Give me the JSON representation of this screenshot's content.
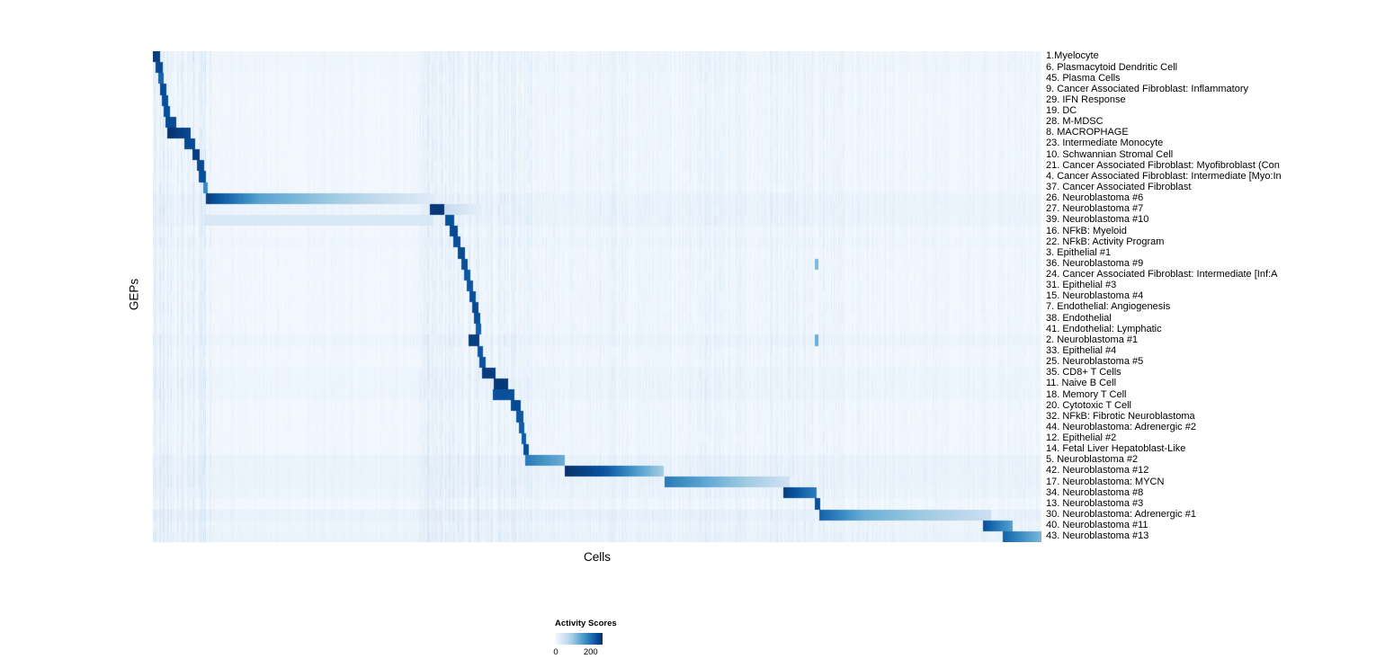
{
  "chart_data": {
    "type": "heatmap",
    "title": "",
    "xlabel": "Cells",
    "ylabel": "GEPs",
    "legend": {
      "title": "Activity Scores",
      "min": 0,
      "max": 200,
      "min_label": "0",
      "max_label": "200"
    },
    "colormap": [
      "#f7fbff",
      "#deebf7",
      "#c6dbef",
      "#9ecae1",
      "#6baed6",
      "#4292c6",
      "#2171b5",
      "#08519c",
      "#08306b"
    ],
    "value_scale": {
      "min": 0,
      "max": 200
    },
    "texture_bands": [
      {
        "x0": 0.0,
        "x1": 0.065,
        "amp": 0.09
      },
      {
        "x0": 0.3,
        "x1": 0.43,
        "amp": 0.07
      },
      {
        "x0": 0.43,
        "x1": 0.6,
        "amp": 0.04
      },
      {
        "x0": 0.6,
        "x1": 0.78,
        "amp": 0.05
      },
      {
        "x0": 0.78,
        "x1": 1.0,
        "amp": 0.03
      }
    ],
    "rows": [
      {
        "label": "1.Myelocyte",
        "base": 0.03,
        "segments": [
          {
            "x0": 0.0,
            "x1": 0.008,
            "v0": 0.95,
            "v1": 0.95
          }
        ]
      },
      {
        "label": "6. Plasmacytoid Dendritic Cell",
        "base": 0.03,
        "segments": [
          {
            "x0": 0.003,
            "x1": 0.011,
            "v0": 0.9,
            "v1": 0.9
          }
        ]
      },
      {
        "label": "45. Plasma Cells",
        "base": 0.02,
        "segments": [
          {
            "x0": 0.006,
            "x1": 0.012,
            "v0": 0.8,
            "v1": 0.8
          }
        ]
      },
      {
        "label": "9. Cancer Associated Fibroblast: Inflammatory",
        "base": 0.02,
        "segments": [
          {
            "x0": 0.008,
            "x1": 0.015,
            "v0": 0.9,
            "v1": 0.9
          }
        ]
      },
      {
        "label": "29. IFN Response",
        "base": 0.02,
        "segments": [
          {
            "x0": 0.01,
            "x1": 0.017,
            "v0": 0.88,
            "v1": 0.88
          }
        ]
      },
      {
        "label": "19. DC",
        "base": 0.02,
        "segments": [
          {
            "x0": 0.012,
            "x1": 0.019,
            "v0": 0.88,
            "v1": 0.88
          }
        ]
      },
      {
        "label": "28. M-MDSC",
        "base": 0.02,
        "segments": [
          {
            "x0": 0.014,
            "x1": 0.026,
            "v0": 0.9,
            "v1": 0.9
          }
        ]
      },
      {
        "label": "8. MACROPHAGE",
        "base": 0.02,
        "segments": [
          {
            "x0": 0.016,
            "x1": 0.0415,
            "v0": 1.0,
            "v1": 0.9
          }
        ]
      },
      {
        "label": "23. Intermediate Monocyte",
        "base": 0.02,
        "segments": [
          {
            "x0": 0.035,
            "x1": 0.0475,
            "v0": 0.9,
            "v1": 0.9
          }
        ]
      },
      {
        "label": "10. Schwannian Stromal Cell",
        "base": 0.02,
        "segments": [
          {
            "x0": 0.0445,
            "x1": 0.0526,
            "v0": 0.95,
            "v1": 0.95
          }
        ]
      },
      {
        "label": "21. Cancer Associated Fibroblast: Myofibroblast (Con",
        "base": 0.02,
        "segments": [
          {
            "x0": 0.0486,
            "x1": 0.0567,
            "v0": 0.9,
            "v1": 0.9
          }
        ]
      },
      {
        "label": "4. Cancer Associated Fibroblast: Intermediate [Myo:In",
        "base": 0.02,
        "segments": [
          {
            "x0": 0.0516,
            "x1": 0.0597,
            "v0": 0.88,
            "v1": 0.88
          }
        ]
      },
      {
        "label": "37. Cancer Associated Fibroblast",
        "base": 0.02,
        "segments": [
          {
            "x0": 0.0557,
            "x1": 0.0617,
            "v0": 0.65,
            "v1": 0.65
          }
        ]
      },
      {
        "label": "26. Neuroblastoma #6",
        "base": 0.045,
        "segments": [
          {
            "x0": 0.0597,
            "x1": 0.12,
            "v0": 0.95,
            "v1": 0.55
          },
          {
            "x0": 0.12,
            "x1": 0.3148,
            "v0": 0.55,
            "v1": 0.12
          }
        ]
      },
      {
        "label": "27. Neuroblastoma #7",
        "base": 0.045,
        "segments": [
          {
            "x0": 0.3117,
            "x1": 0.3279,
            "v0": 0.97,
            "v1": 0.97
          },
          {
            "x0": 0.3279,
            "x1": 0.37,
            "v0": 0.25,
            "v1": 0.08
          }
        ]
      },
      {
        "label": "39. Neuroblastoma #10",
        "base": 0.045,
        "segments": [
          {
            "x0": 0.0597,
            "x1": 0.3148,
            "v0": 0.15,
            "v1": 0.15
          },
          {
            "x0": 0.3289,
            "x1": 0.339,
            "v0": 0.88,
            "v1": 0.88
          }
        ]
      },
      {
        "label": "16. NFkB: Myeloid",
        "base": 0.02,
        "segments": [
          {
            "x0": 0.334,
            "x1": 0.343,
            "v0": 0.9,
            "v1": 0.9
          }
        ]
      },
      {
        "label": "22. NFkB: Activity Program",
        "base": 0.03,
        "segments": [
          {
            "x0": 0.338,
            "x1": 0.346,
            "v0": 0.88,
            "v1": 0.88
          }
        ]
      },
      {
        "label": "3. Epithelial #1",
        "base": 0.02,
        "segments": [
          {
            "x0": 0.343,
            "x1": 0.351,
            "v0": 0.9,
            "v1": 0.9
          }
        ]
      },
      {
        "label": "36. Neuroblastoma #9",
        "base": 0.02,
        "segments": [
          {
            "x0": 0.347,
            "x1": 0.354,
            "v0": 0.88,
            "v1": 0.88
          },
          {
            "x0": 0.7449,
            "x1": 0.7485,
            "v0": 0.45,
            "v1": 0.45
          }
        ]
      },
      {
        "label": "24. Cancer Associated Fibroblast: Intermediate [Inf:A",
        "base": 0.02,
        "segments": [
          {
            "x0": 0.35,
            "x1": 0.357,
            "v0": 0.85,
            "v1": 0.85
          }
        ]
      },
      {
        "label": "31. Epithelial #3",
        "base": 0.02,
        "segments": [
          {
            "x0": 0.353,
            "x1": 0.36,
            "v0": 0.85,
            "v1": 0.85
          }
        ]
      },
      {
        "label": "15. Neuroblastoma #4",
        "base": 0.02,
        "segments": [
          {
            "x0": 0.356,
            "x1": 0.363,
            "v0": 0.88,
            "v1": 0.88
          }
        ]
      },
      {
        "label": "7. Endothelial: Angiogenesis",
        "base": 0.02,
        "segments": [
          {
            "x0": 0.359,
            "x1": 0.366,
            "v0": 0.9,
            "v1": 0.9
          }
        ]
      },
      {
        "label": "38. Endothelial",
        "base": 0.02,
        "segments": [
          {
            "x0": 0.361,
            "x1": 0.368,
            "v0": 0.88,
            "v1": 0.88
          }
        ]
      },
      {
        "label": "41. Endothelial: Lymphatic",
        "base": 0.02,
        "segments": [
          {
            "x0": 0.363,
            "x1": 0.369,
            "v0": 0.82,
            "v1": 0.82
          }
        ]
      },
      {
        "label": "2. Neuroblastoma #1",
        "base": 0.04,
        "segments": [
          {
            "x0": 0.355,
            "x1": 0.367,
            "v0": 0.95,
            "v1": 0.95
          },
          {
            "x0": 0.7449,
            "x1": 0.748,
            "v0": 0.5,
            "v1": 0.5
          }
        ]
      },
      {
        "label": "33. Epithelial #4",
        "base": 0.02,
        "segments": [
          {
            "x0": 0.365,
            "x1": 0.371,
            "v0": 0.85,
            "v1": 0.85
          }
        ]
      },
      {
        "label": "25. Neuroblastoma #5",
        "base": 0.02,
        "segments": [
          {
            "x0": 0.367,
            "x1": 0.374,
            "v0": 0.87,
            "v1": 0.87
          }
        ]
      },
      {
        "label": "35. CD8+ T Cells",
        "base": 0.035,
        "segments": [
          {
            "x0": 0.37,
            "x1": 0.3856,
            "v0": 0.95,
            "v1": 0.95
          }
        ]
      },
      {
        "label": "11. Naive B Cell",
        "base": 0.035,
        "segments": [
          {
            "x0": 0.3836,
            "x1": 0.3988,
            "v0": 0.97,
            "v1": 0.97
          }
        ]
      },
      {
        "label": "18. Memory T Cell",
        "base": 0.035,
        "segments": [
          {
            "x0": 0.3816,
            "x1": 0.4059,
            "v0": 0.88,
            "v1": 0.88
          }
        ]
      },
      {
        "label": "20. Cytotoxic T Cell",
        "base": 0.02,
        "segments": [
          {
            "x0": 0.4028,
            "x1": 0.413,
            "v0": 0.9,
            "v1": 0.9
          }
        ]
      },
      {
        "label": "32. NFkB: Fibrotic Neuroblastoma",
        "base": 0.02,
        "segments": [
          {
            "x0": 0.4089,
            "x1": 0.416,
            "v0": 0.85,
            "v1": 0.85
          }
        ]
      },
      {
        "label": "44. Neuroblastoma: Adrenergic #2",
        "base": 0.02,
        "segments": [
          {
            "x0": 0.4119,
            "x1": 0.418,
            "v0": 0.83,
            "v1": 0.83
          }
        ]
      },
      {
        "label": "12. Epithelial #2",
        "base": 0.02,
        "segments": [
          {
            "x0": 0.4149,
            "x1": 0.42,
            "v0": 0.83,
            "v1": 0.83
          }
        ]
      },
      {
        "label": "14. Fetal Liver Hepatoblast-Like",
        "base": 0.02,
        "segments": [
          {
            "x0": 0.417,
            "x1": 0.423,
            "v0": 0.88,
            "v1": 0.88
          }
        ]
      },
      {
        "label": "5. Neuroblastoma #2",
        "base": 0.05,
        "segments": [
          {
            "x0": 0.419,
            "x1": 0.4626,
            "v0": 0.72,
            "v1": 0.5
          }
        ]
      },
      {
        "label": "42. Neuroblastoma #12",
        "base": 0.05,
        "segments": [
          {
            "x0": 0.4626,
            "x1": 0.51,
            "v0": 1.0,
            "v1": 0.85
          },
          {
            "x0": 0.51,
            "x1": 0.5739,
            "v0": 0.85,
            "v1": 0.35
          }
        ]
      },
      {
        "label": "17. Neuroblastoma: MYCN",
        "base": 0.05,
        "segments": [
          {
            "x0": 0.5749,
            "x1": 0.63,
            "v0": 0.72,
            "v1": 0.5
          },
          {
            "x0": 0.63,
            "x1": 0.7156,
            "v0": 0.5,
            "v1": 0.2
          }
        ]
      },
      {
        "label": "34. Neuroblastoma #8",
        "base": 0.04,
        "segments": [
          {
            "x0": 0.7095,
            "x1": 0.746,
            "v0": 0.95,
            "v1": 0.7
          }
        ]
      },
      {
        "label": "13. Neuroblastoma #3",
        "base": 0.02,
        "segments": [
          {
            "x0": 0.744,
            "x1": 0.751,
            "v0": 0.88,
            "v1": 0.88
          }
        ]
      },
      {
        "label": "30. Neuroblastoma: Adrenergic #1",
        "base": 0.06,
        "segments": [
          {
            "x0": 0.749,
            "x1": 0.8,
            "v0": 0.82,
            "v1": 0.5
          },
          {
            "x0": 0.8,
            "x1": 0.9433,
            "v0": 0.5,
            "v1": 0.22
          }
        ]
      },
      {
        "label": "40. Neuroblastoma #11",
        "base": 0.04,
        "segments": [
          {
            "x0": 0.934,
            "x1": 0.9676,
            "v0": 0.88,
            "v1": 0.55
          }
        ]
      },
      {
        "label": "43. Neuroblastoma #13",
        "base": 0.05,
        "segments": [
          {
            "x0": 0.9555,
            "x1": 1.0,
            "v0": 0.82,
            "v1": 0.45
          }
        ]
      }
    ]
  }
}
